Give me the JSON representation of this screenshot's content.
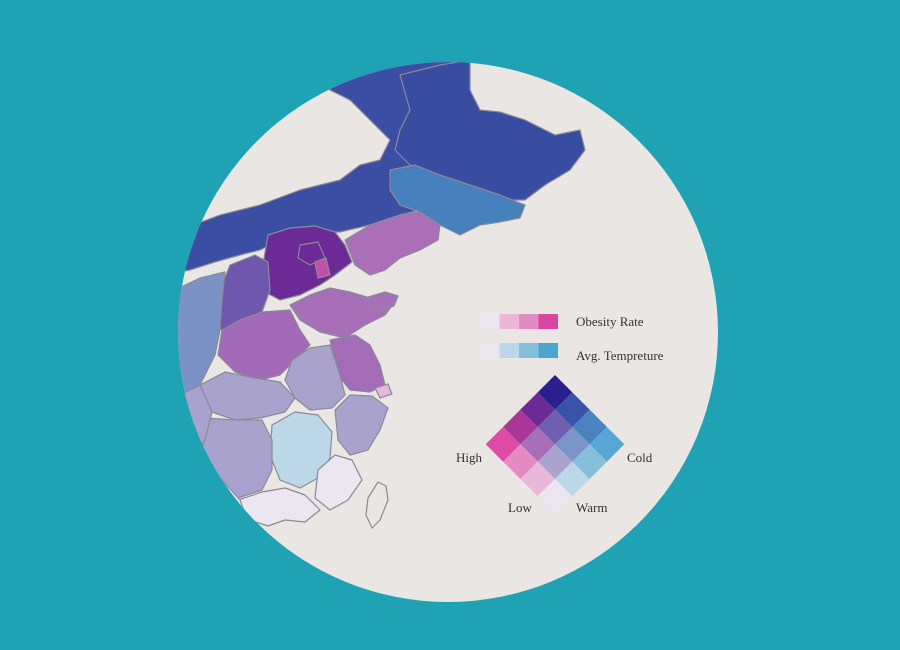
{
  "legend": {
    "obesity_label": "Obesity Rate",
    "temperature_label": "Avg. Tempreture",
    "obesity_colors": [
      "#ece6f0",
      "#e9b8d6",
      "#e28bc4",
      "#d9469f"
    ],
    "temperature_colors": [
      "#ece6f0",
      "#bcd7e7",
      "#86bfdc",
      "#4aa6d0"
    ],
    "axis_high": "High",
    "axis_low": "Low",
    "axis_cold": "Cold",
    "axis_warm": "Warm",
    "bivariate_grid": [
      [
        "#2b1f8e",
        "#3a52a8",
        "#4a83c0",
        "#57a6d3"
      ],
      [
        "#6b2a96",
        "#6f5fae",
        "#7b94c7",
        "#86bfdc"
      ],
      [
        "#a93795",
        "#a76fb8",
        "#a9a3cd",
        "#bcd7e7"
      ],
      [
        "#de4ca6",
        "#e48bc4",
        "#e9b8d8",
        "#ece6f0"
      ]
    ]
  },
  "colors": {
    "background": "#1fa2b4",
    "land_base": "#e9e6e4",
    "border": "#8a8a95"
  }
}
